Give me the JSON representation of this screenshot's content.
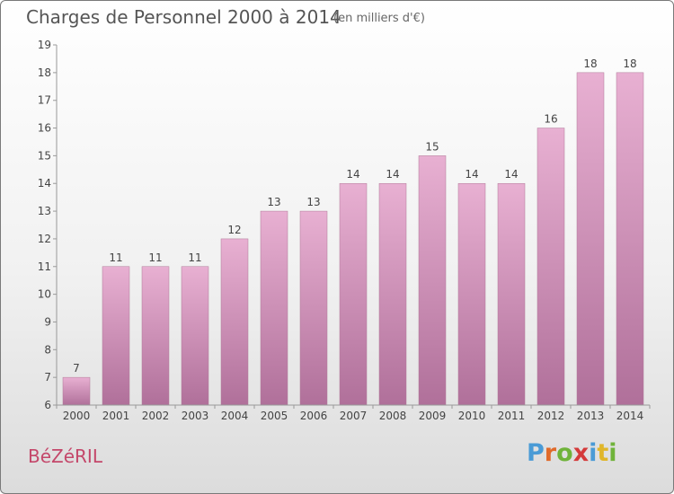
{
  "header": {
    "title": "Charges de Personnel 2000 à 2014",
    "subtitle": "(en milliers d'€)"
  },
  "footer": {
    "commune": "BéZéRIL",
    "logo_text": "Proxiti",
    "logo_letter_colors": [
      "#4a9bd6",
      "#e06a2a",
      "#6fb33a",
      "#d43a3a",
      "#4a9bd6",
      "#e0b62a",
      "#6fb33a"
    ]
  },
  "colors": {
    "bar_top": "#e8b0d2",
    "bar_bottom": "#b0709a",
    "axis": "#999999",
    "title_text": "#555555",
    "commune_text": "#c4476a"
  },
  "chart_data": {
    "type": "bar",
    "title": "Charges de Personnel 2000 à 2014",
    "subtitle": "(en milliers d'€)",
    "categories": [
      "2000",
      "2001",
      "2002",
      "2003",
      "2004",
      "2005",
      "2006",
      "2007",
      "2008",
      "2009",
      "2010",
      "2011",
      "2012",
      "2013",
      "2014"
    ],
    "values": [
      7,
      11,
      11,
      11,
      12,
      13,
      13,
      14,
      14,
      15,
      14,
      14,
      16,
      18,
      18
    ],
    "ylim": [
      6,
      19
    ],
    "yticks": [
      6,
      7,
      8,
      9,
      10,
      11,
      12,
      13,
      14,
      15,
      16,
      17,
      18,
      19
    ],
    "grid": false,
    "xlabel": "",
    "ylabel": ""
  }
}
